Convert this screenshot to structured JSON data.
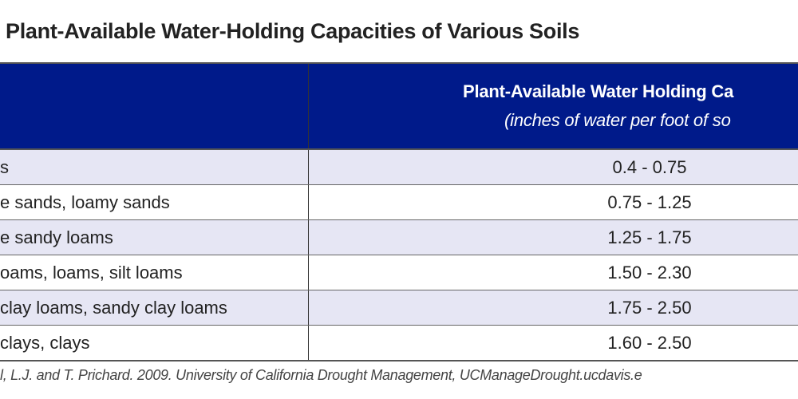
{
  "title": "Plant-Available Water-Holding Capacities of Various Soils",
  "header": {
    "col2_title": "Plant-Available Water Holding Ca",
    "col2_subtitle": "(inches of water per foot of so"
  },
  "rows": [
    {
      "soil": "s",
      "value": "0.4 - 0.75"
    },
    {
      "soil": "e sands, loamy sands",
      "value": "0.75 - 1.25"
    },
    {
      "soil": "e sandy loams",
      "value": "1.25 - 1.75"
    },
    {
      "soil": "oams, loams, silt loams",
      "value": "1.50 - 2.30"
    },
    {
      "soil": "clay loams, sandy clay loams",
      "value": "1.75 - 2.50"
    },
    {
      "soil": "clays, clays",
      "value": "1.60 - 2.50"
    }
  ],
  "footnote": "l, L.J. and T. Prichard. 2009. University of California Drought Management, UCManageDrought.ucdavis.e",
  "colors": {
    "header_bg": "#001a8a",
    "alt_row": "#e6e6f4"
  }
}
